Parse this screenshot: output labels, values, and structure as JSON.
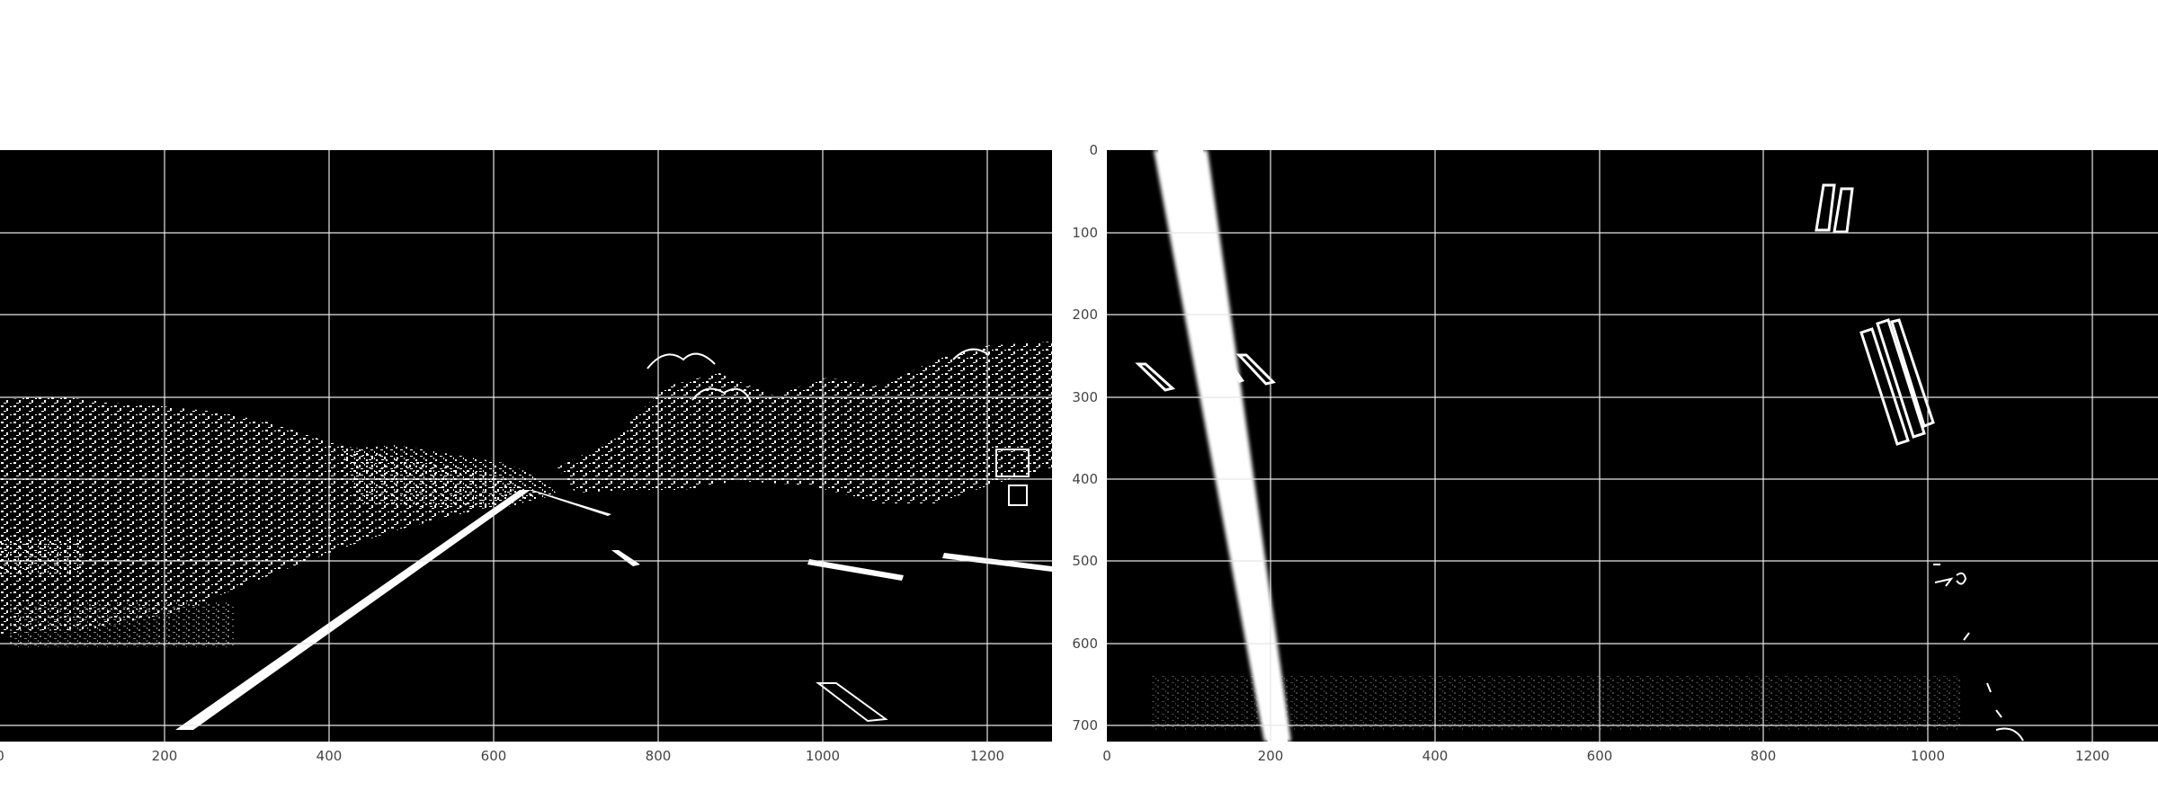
{
  "figure": {
    "background": "#ffffff",
    "image_background": "#000000",
    "mark_color": "#ffffff",
    "grid": true,
    "grid_color": "#e6e6e6"
  },
  "panels": [
    {
      "name": "left-panel",
      "content": "binary edge map of road scene",
      "xlim": [
        0,
        1280
      ],
      "ylim": [
        720,
        0
      ],
      "x_ticks": [
        "0",
        "200",
        "400",
        "600",
        "800",
        "1000",
        "1200"
      ],
      "y_ticks": []
    },
    {
      "name": "right-panel",
      "content": "bird's-eye warped binary lane view",
      "xlim": [
        0,
        1280
      ],
      "ylim": [
        720,
        0
      ],
      "x_ticks": [
        "0",
        "200",
        "400",
        "600",
        "800",
        "1000",
        "1200"
      ],
      "y_ticks": [
        "0",
        "100",
        "200",
        "300",
        "400",
        "500",
        "600",
        "700"
      ]
    }
  ]
}
